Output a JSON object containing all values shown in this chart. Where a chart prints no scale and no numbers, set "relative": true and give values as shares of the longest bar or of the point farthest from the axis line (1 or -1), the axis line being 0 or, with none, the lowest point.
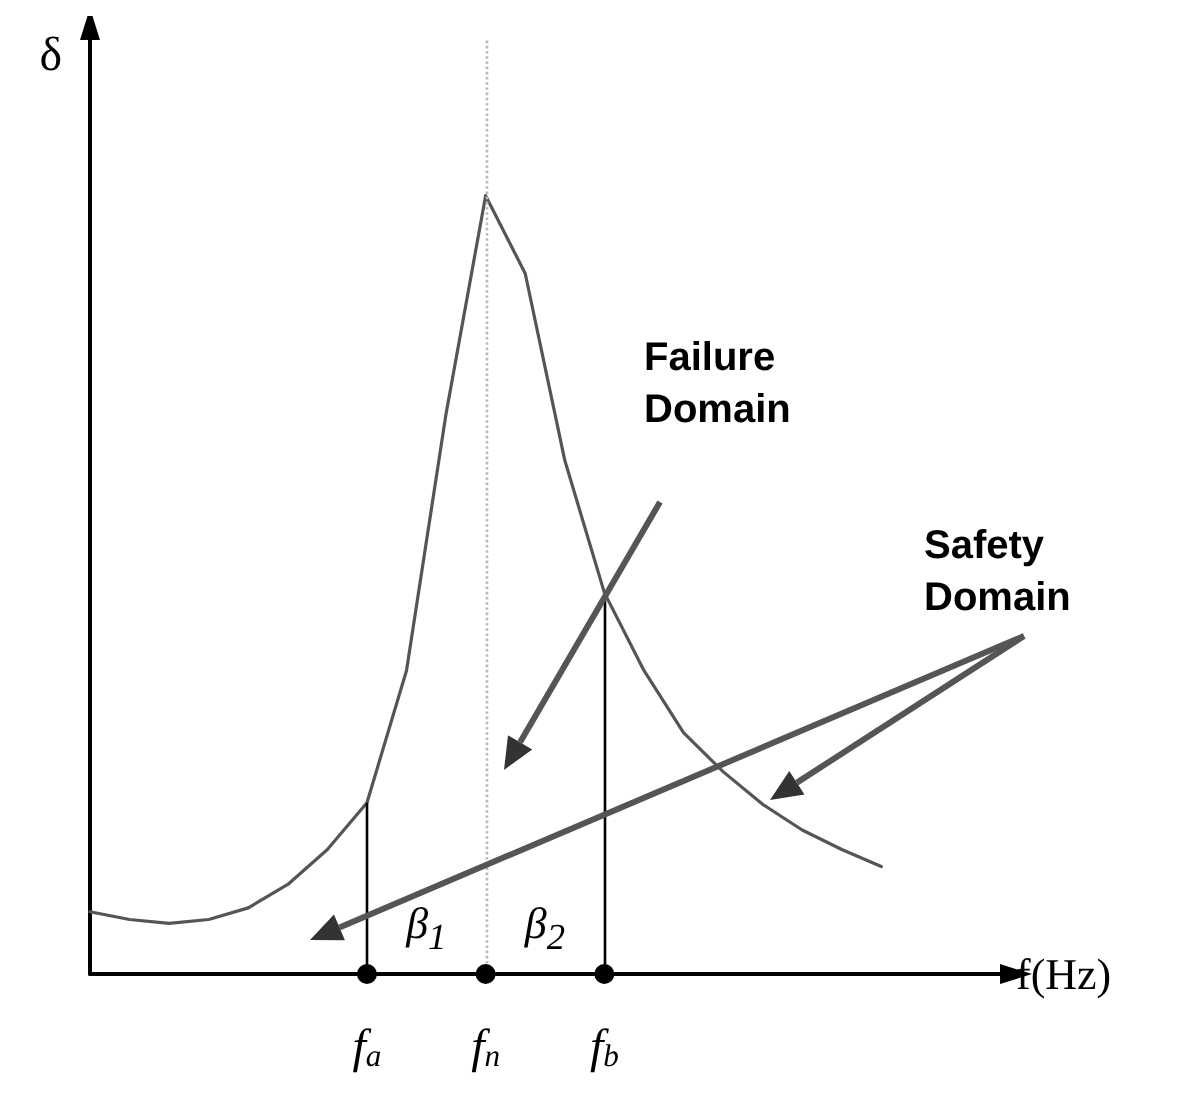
{
  "chart_data": {
    "type": "line",
    "relative": true,
    "xlabel": "f(Hz)",
    "ylabel": "δ",
    "categories": [
      null,
      null,
      null,
      null,
      null,
      null,
      null,
      "f$_{a}$",
      null,
      null,
      "f$_{n}$",
      null,
      null,
      "f$_{b}$",
      null,
      null,
      null,
      null,
      null,
      null,
      null,
      null,
      null,
      null
    ],
    "series": [
      {
        "color": "#555555",
        "values": [
          0.08,
          0.07,
          0.065,
          0.07,
          0.085,
          0.115,
          0.16,
          0.22,
          0.39,
          0.72,
          1,
          0.9,
          0.66,
          0.49,
          0.39,
          0.31,
          0.26,
          0.218,
          0.185,
          0.16,
          0.138,
          null,
          null,
          null
        ]
      }
    ],
    "ref_lines": [
      {
        "axis": "x",
        "value": "f$_{a}$",
        "line_style": "solid",
        "color": "#000000"
      },
      {
        "axis": "x",
        "value": "f$_{n}$",
        "line_style": "dotted",
        "color": "#bbbbbb"
      },
      {
        "axis": "x",
        "value": "f$_{b}$",
        "line_style": "solid",
        "color": "#000000"
      }
    ],
    "annotations": [
      "Failure\nDomain",
      "Safety\nDomain",
      "β$_{1}$",
      "β$_{2}$"
    ],
    "grid": false,
    "marker": "none",
    "line_style": "solid"
  }
}
